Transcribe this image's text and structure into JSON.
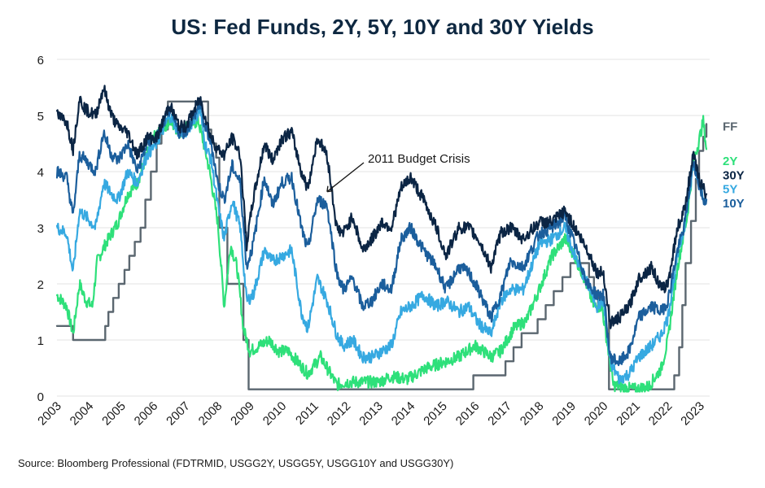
{
  "chart_data": {
    "type": "line",
    "title": "US: Fed Funds, 2Y, 5Y, 10Y and 30Y Yields",
    "xlabel": "",
    "ylabel": "",
    "xlim": [
      2003,
      2023.3
    ],
    "ylim": [
      0,
      6
    ],
    "yticks": [
      "0",
      "1",
      "2",
      "3",
      "4",
      "5",
      "6"
    ],
    "xticks": [
      "2003",
      "2004",
      "2005",
      "2006",
      "2007",
      "2008",
      "2009",
      "2010",
      "2011",
      "2012",
      "2013",
      "2014",
      "2015",
      "2016",
      "2017",
      "2018",
      "2019",
      "2020",
      "2021",
      "2022",
      "2023"
    ],
    "grid": true,
    "annotation": {
      "text": "2011 Budget Crisis",
      "x": 2011.4,
      "y": 3.7
    },
    "series": [
      {
        "name": "FF",
        "color": "#5b6770",
        "step": true,
        "x": [
          2003.0,
          2003.5,
          2004.5,
          2004.6,
          2004.75,
          2004.92,
          2005.1,
          2005.25,
          2005.42,
          2005.6,
          2005.75,
          2005.92,
          2006.1,
          2006.25,
          2006.45,
          2007.7,
          2007.8,
          2007.95,
          2008.05,
          2008.3,
          2008.8,
          2008.96,
          2015.95,
          2016.95,
          2017.2,
          2017.45,
          2017.95,
          2018.2,
          2018.45,
          2018.72,
          2018.97,
          2019.55,
          2019.7,
          2019.83,
          2020.17,
          2022.2,
          2022.35,
          2022.45,
          2022.55,
          2022.72,
          2022.87,
          2022.97,
          2023.1,
          2023.2
        ],
        "y": [
          1.25,
          1.0,
          1.25,
          1.5,
          1.75,
          2.0,
          2.25,
          2.5,
          2.75,
          3.0,
          3.5,
          4.0,
          4.5,
          4.75,
          5.25,
          4.75,
          4.5,
          4.25,
          3.0,
          2.0,
          1.0,
          0.12,
          0.37,
          0.62,
          0.87,
          1.12,
          1.37,
          1.62,
          1.87,
          2.12,
          2.37,
          2.12,
          1.87,
          1.62,
          0.12,
          0.37,
          0.87,
          1.62,
          2.37,
          3.12,
          3.87,
          4.37,
          4.62,
          4.85
        ]
      },
      {
        "name": "2Y",
        "color": "#2ee07a",
        "x": [
          2003.0,
          2003.3,
          2003.5,
          2003.7,
          2003.9,
          2004.1,
          2004.25,
          2004.5,
          2004.7,
          2004.9,
          2005.2,
          2005.5,
          2005.8,
          2006.0,
          2006.5,
          2006.8,
          2007.0,
          2007.4,
          2007.6,
          2007.75,
          2008.0,
          2008.2,
          2008.4,
          2008.6,
          2008.8,
          2009.0,
          2009.3,
          2009.6,
          2009.9,
          2010.2,
          2010.5,
          2010.8,
          2011.2,
          2011.5,
          2011.7,
          2012.0,
          2012.5,
          2013.0,
          2013.4,
          2013.9,
          2014.5,
          2015.0,
          2015.5,
          2016.0,
          2016.5,
          2016.8,
          2017.2,
          2017.6,
          2018.0,
          2018.4,
          2018.8,
          2019.1,
          2019.4,
          2019.7,
          2019.95,
          2020.1,
          2020.3,
          2020.6,
          2021.0,
          2021.4,
          2021.8,
          2022.0,
          2022.3,
          2022.6,
          2022.8,
          2022.95,
          2023.1,
          2023.2
        ],
        "y": [
          1.8,
          1.6,
          1.1,
          2.0,
          1.7,
          1.6,
          2.4,
          2.7,
          2.9,
          3.1,
          3.6,
          3.8,
          4.3,
          4.6,
          4.9,
          4.7,
          4.8,
          4.9,
          4.4,
          4.0,
          3.1,
          1.6,
          2.7,
          2.3,
          1.2,
          0.8,
          0.9,
          1.0,
          0.8,
          0.8,
          0.6,
          0.4,
          0.7,
          0.4,
          0.2,
          0.25,
          0.25,
          0.25,
          0.35,
          0.3,
          0.5,
          0.6,
          0.7,
          0.9,
          0.7,
          0.8,
          1.2,
          1.35,
          1.9,
          2.5,
          2.8,
          2.5,
          2.1,
          1.6,
          1.6,
          1.0,
          0.2,
          0.15,
          0.12,
          0.17,
          0.5,
          1.0,
          2.3,
          3.2,
          4.2,
          4.5,
          4.9,
          4.4
        ]
      },
      {
        "name": "5Y",
        "color": "#36a9e1",
        "x": [
          2003.0,
          2003.3,
          2003.5,
          2003.7,
          2003.9,
          2004.2,
          2004.45,
          2004.7,
          2004.9,
          2005.2,
          2005.5,
          2005.8,
          2006.1,
          2006.5,
          2006.8,
          2007.0,
          2007.45,
          2007.6,
          2007.8,
          2008.0,
          2008.2,
          2008.45,
          2008.7,
          2008.9,
          2009.1,
          2009.45,
          2009.7,
          2010.0,
          2010.3,
          2010.6,
          2010.8,
          2011.1,
          2011.4,
          2011.7,
          2011.9,
          2012.2,
          2012.5,
          2012.8,
          2013.1,
          2013.4,
          2013.7,
          2014.0,
          2014.4,
          2014.8,
          2015.1,
          2015.5,
          2015.8,
          2016.1,
          2016.5,
          2016.8,
          2017.1,
          2017.5,
          2018.0,
          2018.4,
          2018.8,
          2019.1,
          2019.5,
          2019.8,
          2020.0,
          2020.2,
          2020.5,
          2020.8,
          2021.1,
          2021.5,
          2021.8,
          2022.0,
          2022.3,
          2022.5,
          2022.8,
          2022.95,
          2023.1,
          2023.2
        ],
        "y": [
          3.0,
          2.9,
          2.2,
          3.3,
          3.2,
          3.0,
          3.8,
          3.6,
          3.5,
          4.0,
          3.8,
          4.3,
          4.5,
          5.0,
          4.7,
          4.7,
          5.1,
          4.5,
          4.2,
          3.4,
          2.8,
          3.5,
          3.0,
          1.7,
          1.8,
          2.6,
          2.4,
          2.5,
          2.6,
          1.5,
          1.2,
          2.1,
          1.7,
          1.1,
          0.9,
          1.0,
          0.7,
          0.7,
          0.8,
          0.9,
          1.5,
          1.6,
          1.8,
          1.6,
          1.7,
          1.5,
          1.6,
          1.3,
          1.1,
          1.7,
          1.9,
          1.9,
          2.7,
          2.8,
          3.0,
          2.5,
          2.0,
          1.6,
          1.7,
          0.6,
          0.3,
          0.4,
          0.7,
          0.9,
          1.1,
          1.4,
          2.5,
          3.0,
          4.1,
          3.9,
          3.6,
          3.5
        ]
      },
      {
        "name": "10Y",
        "color": "#1b5e9c",
        "x": [
          2003.0,
          2003.3,
          2003.5,
          2003.7,
          2003.9,
          2004.2,
          2004.45,
          2004.7,
          2004.9,
          2005.2,
          2005.5,
          2005.8,
          2006.1,
          2006.5,
          2006.8,
          2007.0,
          2007.45,
          2007.6,
          2007.8,
          2008.0,
          2008.2,
          2008.45,
          2008.7,
          2008.9,
          2009.1,
          2009.45,
          2009.7,
          2010.0,
          2010.3,
          2010.6,
          2010.8,
          2011.1,
          2011.4,
          2011.7,
          2011.9,
          2012.2,
          2012.5,
          2012.8,
          2013.1,
          2013.4,
          2013.7,
          2014.0,
          2014.4,
          2014.8,
          2015.1,
          2015.5,
          2015.8,
          2016.1,
          2016.5,
          2016.8,
          2017.1,
          2017.5,
          2018.0,
          2018.4,
          2018.8,
          2019.1,
          2019.5,
          2019.8,
          2020.0,
          2020.2,
          2020.5,
          2020.8,
          2021.1,
          2021.5,
          2021.8,
          2022.0,
          2022.3,
          2022.5,
          2022.8,
          2022.95,
          2023.1,
          2023.2
        ],
        "y": [
          4.0,
          3.9,
          3.2,
          4.3,
          4.2,
          4.0,
          4.7,
          4.3,
          4.2,
          4.5,
          4.0,
          4.5,
          4.6,
          5.1,
          4.7,
          4.7,
          5.2,
          4.8,
          4.5,
          3.8,
          3.5,
          4.1,
          3.8,
          2.3,
          2.7,
          3.9,
          3.4,
          3.8,
          3.9,
          3.0,
          2.6,
          3.5,
          3.4,
          2.2,
          1.9,
          2.1,
          1.6,
          1.7,
          2.0,
          1.9,
          2.8,
          3.0,
          2.6,
          2.3,
          1.9,
          2.3,
          2.2,
          1.9,
          1.4,
          1.8,
          2.4,
          2.3,
          2.9,
          3.0,
          3.2,
          2.7,
          2.0,
          1.8,
          1.8,
          0.7,
          0.6,
          0.8,
          1.4,
          1.6,
          1.5,
          1.7,
          2.6,
          3.0,
          4.2,
          3.8,
          3.5,
          3.5
        ]
      },
      {
        "name": "30Y",
        "color": "#0b2544",
        "x": [
          2003.0,
          2003.3,
          2003.5,
          2003.7,
          2003.9,
          2004.2,
          2004.45,
          2004.7,
          2004.9,
          2005.2,
          2005.5,
          2005.8,
          2006.1,
          2006.5,
          2006.8,
          2007.0,
          2007.45,
          2007.6,
          2007.8,
          2008.0,
          2008.2,
          2008.45,
          2008.7,
          2008.9,
          2009.1,
          2009.45,
          2009.7,
          2010.0,
          2010.3,
          2010.6,
          2010.8,
          2011.1,
          2011.4,
          2011.7,
          2011.9,
          2012.2,
          2012.5,
          2012.8,
          2013.1,
          2013.4,
          2013.7,
          2014.0,
          2014.4,
          2014.8,
          2015.1,
          2015.5,
          2015.8,
          2016.1,
          2016.5,
          2016.8,
          2017.1,
          2017.5,
          2018.0,
          2018.4,
          2018.8,
          2019.1,
          2019.5,
          2019.8,
          2020.0,
          2020.2,
          2020.5,
          2020.8,
          2021.1,
          2021.5,
          2021.8,
          2022.0,
          2022.3,
          2022.5,
          2022.8,
          2022.95,
          2023.1,
          2023.2
        ],
        "y": [
          5.0,
          4.9,
          4.4,
          5.3,
          5.1,
          5.0,
          5.5,
          5.0,
          4.8,
          4.7,
          4.3,
          4.6,
          4.6,
          5.2,
          4.8,
          4.8,
          5.3,
          5.0,
          4.6,
          4.4,
          4.3,
          4.6,
          4.3,
          2.7,
          3.5,
          4.5,
          4.2,
          4.6,
          4.7,
          4.0,
          3.7,
          4.6,
          4.3,
          3.0,
          2.9,
          3.2,
          2.6,
          2.8,
          3.1,
          3.0,
          3.7,
          3.9,
          3.5,
          3.0,
          2.5,
          3.0,
          3.0,
          2.8,
          2.3,
          2.9,
          3.0,
          2.8,
          3.1,
          3.1,
          3.3,
          3.0,
          2.6,
          2.2,
          2.2,
          1.3,
          1.4,
          1.6,
          2.1,
          2.3,
          1.9,
          2.0,
          3.0,
          3.3,
          4.3,
          3.9,
          3.7,
          3.6
        ]
      }
    ],
    "legend": [
      {
        "label": "FF",
        "color": "#5b6770"
      },
      {
        "label": "2Y",
        "color": "#2ee07a"
      },
      {
        "label": "30Y",
        "color": "#0b2544"
      },
      {
        "label": "5Y",
        "color": "#36a9e1"
      },
      {
        "label": "10Y",
        "color": "#1b5e9c"
      }
    ]
  },
  "source": "Source: Bloomberg Professional (FDTRMID, USGG2Y, USGG5Y, USGG10Y and USGG30Y)"
}
